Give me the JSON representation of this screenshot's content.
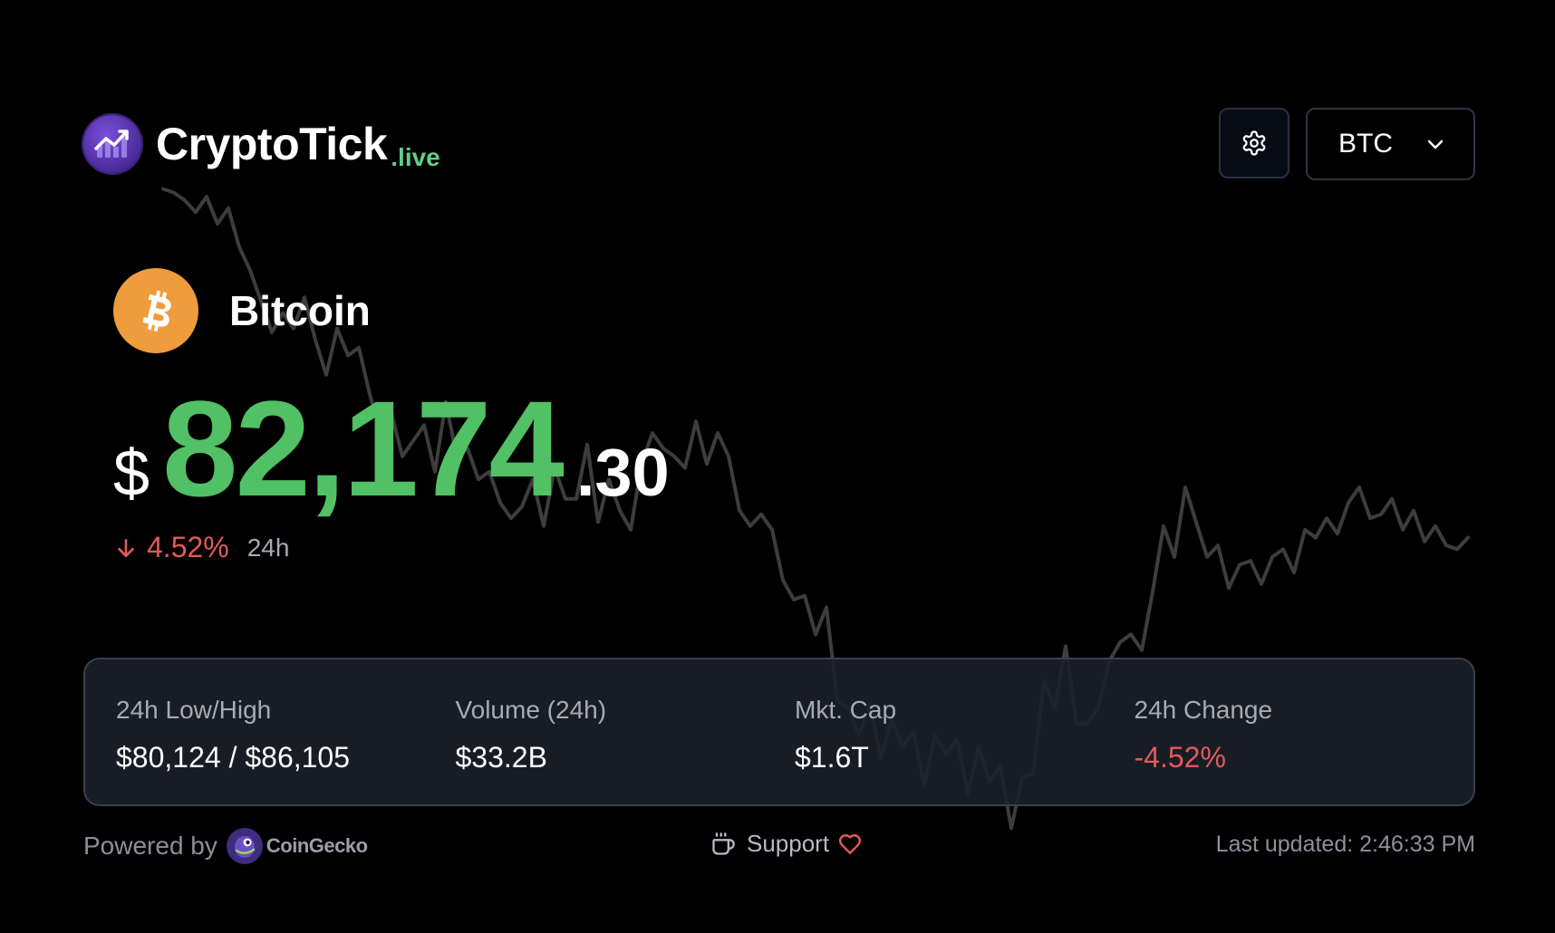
{
  "brand": {
    "name": "CryptoTick",
    "suffix_dot": ".",
    "suffix": "live",
    "logo_icon": "trending-chart-icon",
    "accent_color": "#5fcf86"
  },
  "header": {
    "settings_icon": "gear-icon",
    "currency_selector": {
      "selected": "BTC",
      "icon": "chevron-down-icon"
    }
  },
  "coin": {
    "name": "Bitcoin",
    "icon": "bitcoin-icon",
    "icon_color": "#ee9c3c"
  },
  "price": {
    "currency_symbol": "$",
    "integer": "82,174",
    "decimal": ".30",
    "color": "#52c065"
  },
  "change": {
    "icon": "arrow-down-icon",
    "percent": "4.52%",
    "period": "24h",
    "color": "#e15a5a"
  },
  "stats": [
    {
      "label": "24h Low/High",
      "value": "$80,124 / $86,105"
    },
    {
      "label": "Volume (24h)",
      "value": "$33.2B"
    },
    {
      "label": "Mkt. Cap",
      "value": "$1.6T"
    },
    {
      "label": "24h Change",
      "value": "-4.52%",
      "negative": true
    }
  ],
  "footer": {
    "powered_by": "Powered by",
    "provider": "CoinGecko",
    "provider_icon": "coingecko-icon",
    "support_icon": "coffee-cup-icon",
    "support_label": "Support",
    "heart_icon": "heart-icon",
    "last_updated": "Last updated: 2:46:33 PM"
  },
  "chart_data": {
    "type": "line",
    "values": [
      86.1,
      86.0,
      85.8,
      85.5,
      85.9,
      85.2,
      85.6,
      84.6,
      84.0,
      83.2,
      82.4,
      82.9,
      82.5,
      83.3,
      82.2,
      81.3,
      82.5,
      81.8,
      82.0,
      80.8,
      79.8,
      80.3,
      79.2,
      79.6,
      80.0,
      78.8,
      80.6,
      79.2,
      79.4,
      78.6,
      78.8,
      78.0,
      77.6,
      77.9,
      78.6,
      77.4,
      78.9,
      78.1,
      78.1,
      79.5,
      77.5,
      78.6,
      77.8,
      77.3,
      79.0,
      79.8,
      79.4,
      79.2,
      78.9,
      80.1,
      79.0,
      79.8,
      79.2,
      77.8,
      77.4,
      77.7,
      77.3,
      76.0,
      75.5,
      75.6,
      74.6,
      75.3,
      72.9,
      72.7,
      72.0,
      72.8,
      71.4,
      72.4,
      71.7,
      72.1,
      70.7,
      72.0,
      71.5,
      71.9,
      70.5,
      71.7,
      70.8,
      71.2,
      69.6,
      70.9,
      71.0,
      73.4,
      72.7,
      74.3,
      72.3,
      72.3,
      72.7,
      73.9,
      74.4,
      74.6,
      74.2,
      75.7,
      77.4,
      76.6,
      78.4,
      77.5,
      76.6,
      76.9,
      75.8,
      76.4,
      76.5,
      75.9,
      76.6,
      76.8,
      76.2,
      77.3,
      77.1,
      77.6,
      77.2,
      78.0,
      78.4,
      77.6,
      77.7,
      78.1,
      77.3,
      77.8,
      77.0,
      77.4,
      76.9,
      76.8,
      77.1
    ],
    "ylim": [
      69.0,
      87.0
    ],
    "color": "#ffffff",
    "opacity": 0.24
  }
}
